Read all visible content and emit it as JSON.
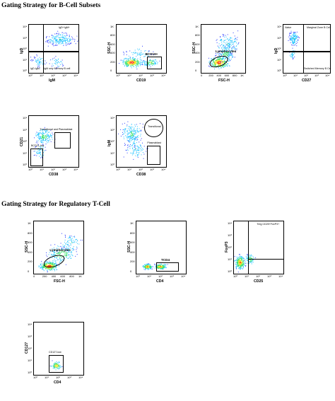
{
  "titles": {
    "bcell": "Gating Strategy for B-Cell Subsets",
    "treg": "Gating Strategy for Regulatory T-Cell"
  },
  "plots": {
    "igd_igm": {
      "xlabel": "IgM",
      "ylabel": "IgD",
      "xticks": [
        "10⁰",
        "10¹",
        "10²",
        "10³",
        "10⁴"
      ],
      "yticks": [
        "10⁰",
        "10¹",
        "10²",
        "10³",
        "10⁴"
      ],
      "quadrants": [
        "IgD+IgM+",
        "IgD-IgM-",
        "IgM only Memory B cell"
      ]
    },
    "ssc_cd19": {
      "xlabel": "CD19",
      "ylabel": "SSC-H",
      "xticks": [
        "10⁰",
        "10¹",
        "10²",
        "10³",
        "10⁴"
      ],
      "yticks": [
        "0",
        "200",
        "400",
        "600",
        "800",
        "1K"
      ],
      "gate": "BCD19+"
    },
    "ssc_fsc_b": {
      "xlabel": "FSC-H",
      "ylabel": "SSC-H",
      "xticks": [
        "0",
        "200",
        "400",
        "600",
        "800",
        "1K"
      ],
      "yticks": [
        "0",
        "200",
        "400",
        "600",
        "800",
        "1K"
      ],
      "gate": "Lymphocytes"
    },
    "igd_cd27": {
      "xlabel": "CD27",
      "ylabel": "IgD",
      "xticks": [
        "10⁰",
        "10¹",
        "10²",
        "10³",
        "10⁴"
      ],
      "yticks": [
        "10⁰",
        "10¹",
        "10²",
        "10³",
        "10⁴"
      ],
      "quadrants": [
        "Naive",
        "Marginal Zone B Cell",
        "Switched Memory B Cell"
      ]
    },
    "cd21_cd38": {
      "xlabel": "CD38",
      "ylabel": "CD21",
      "xticks": [
        "10⁰",
        "10¹",
        "10²",
        "10³",
        "10⁴"
      ],
      "yticks": [
        "10⁰",
        "10¹",
        "10²",
        "10³",
        "10⁴"
      ],
      "gates": [
        "Transitional and Plasmablast",
        "BCD21-low"
      ]
    },
    "igm_cd38": {
      "xlabel": "CD38",
      "ylabel": "IgM",
      "xticks": [
        "10⁰",
        "10¹",
        "10²",
        "10³",
        "10⁴"
      ],
      "yticks": [
        "10⁰",
        "10¹",
        "10²",
        "10³",
        "10⁴"
      ],
      "gates": [
        "Transitional",
        "Plasmablast"
      ]
    },
    "ssc_fsc_t": {
      "xlabel": "FSC-H",
      "ylabel": "SSC-H",
      "xticks": [
        "0",
        "200",
        "400",
        "600",
        "800",
        "1K"
      ],
      "yticks": [
        "0",
        "200",
        "400",
        "600",
        "800",
        "1K"
      ],
      "gate": "Lymphocytes"
    },
    "ssc_cd4": {
      "xlabel": "CD4",
      "ylabel": "SSC-H",
      "xticks": [
        "10⁰",
        "10¹",
        "10²",
        "10³",
        "10⁴"
      ],
      "yticks": [
        "0",
        "200",
        "400",
        "600",
        "800",
        "1K"
      ],
      "gate": "TCD4"
    },
    "foxp3_cd25": {
      "xlabel": "CD25",
      "ylabel": "FoxP3",
      "xticks": [
        "10⁰",
        "10¹",
        "10²",
        "10³",
        "10⁴"
      ],
      "yticks": [
        "10⁰",
        "10¹",
        "10²",
        "10³",
        "10⁴"
      ],
      "gate": "Treg CD25+FoxP3+"
    },
    "cd127_cd4": {
      "xlabel": "CD4",
      "ylabel": "CD127",
      "xticks": [
        "10⁰",
        "10¹",
        "10²",
        "10³",
        "10⁴"
      ],
      "yticks": [
        "10⁰",
        "10¹",
        "10²",
        "10³",
        "10⁴"
      ],
      "gate": "CD127-low"
    }
  }
}
